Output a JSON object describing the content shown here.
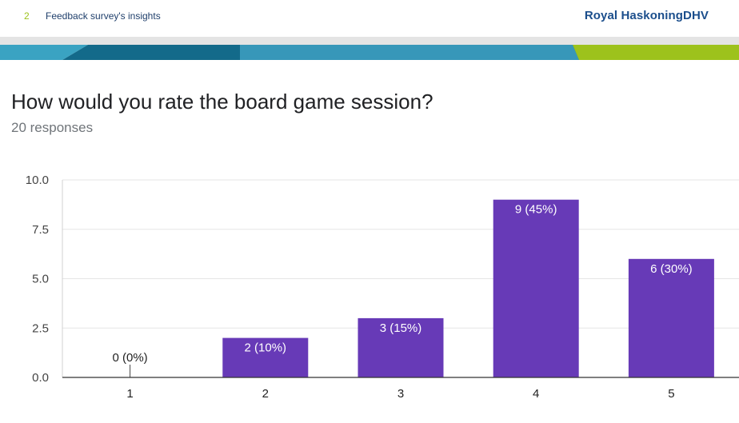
{
  "header": {
    "page_number": "2",
    "title": "Feedback survey's insights",
    "brand": "Royal HaskoningDHV"
  },
  "question": "How would you rate the board game session?",
  "responses": "20 responses",
  "colors": {
    "bar": "#673ab7",
    "band_dark": "#136a8a",
    "band_light": "#3aa3c2",
    "accent_green": "#9dc21c",
    "brand_blue": "#1b4e8c"
  },
  "chart_data": {
    "type": "bar",
    "categories": [
      "1",
      "2",
      "3",
      "4",
      "5"
    ],
    "values": [
      0,
      2,
      3,
      9,
      6
    ],
    "data_labels": [
      "0 (0%)",
      "2 (10%)",
      "3 (15%)",
      "9 (45%)",
      "6 (30%)"
    ],
    "ylim": [
      0,
      10
    ],
    "yticks": [
      "0.0",
      "2.5",
      "5.0",
      "7.5",
      "10.0"
    ],
    "ytick_values": [
      0,
      2.5,
      5,
      7.5,
      10
    ],
    "grid": true
  }
}
